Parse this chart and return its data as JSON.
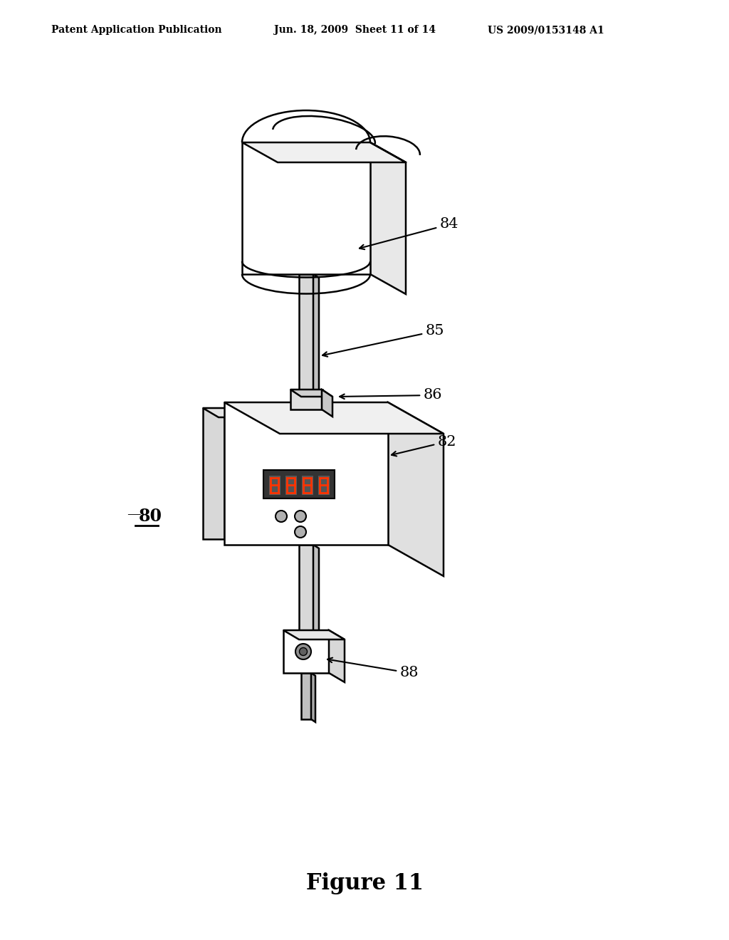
{
  "bg_color": "#ffffff",
  "line_color": "#000000",
  "header_left": "Patent Application Publication",
  "header_mid": "Jun. 18, 2009  Sheet 11 of 14",
  "header_right": "US 2009/0153148 A1",
  "figure_title": "Figure 11",
  "label_80": "80",
  "label_82": "82",
  "label_84": "84",
  "label_85": "85",
  "label_86": "86",
  "label_88": "88"
}
